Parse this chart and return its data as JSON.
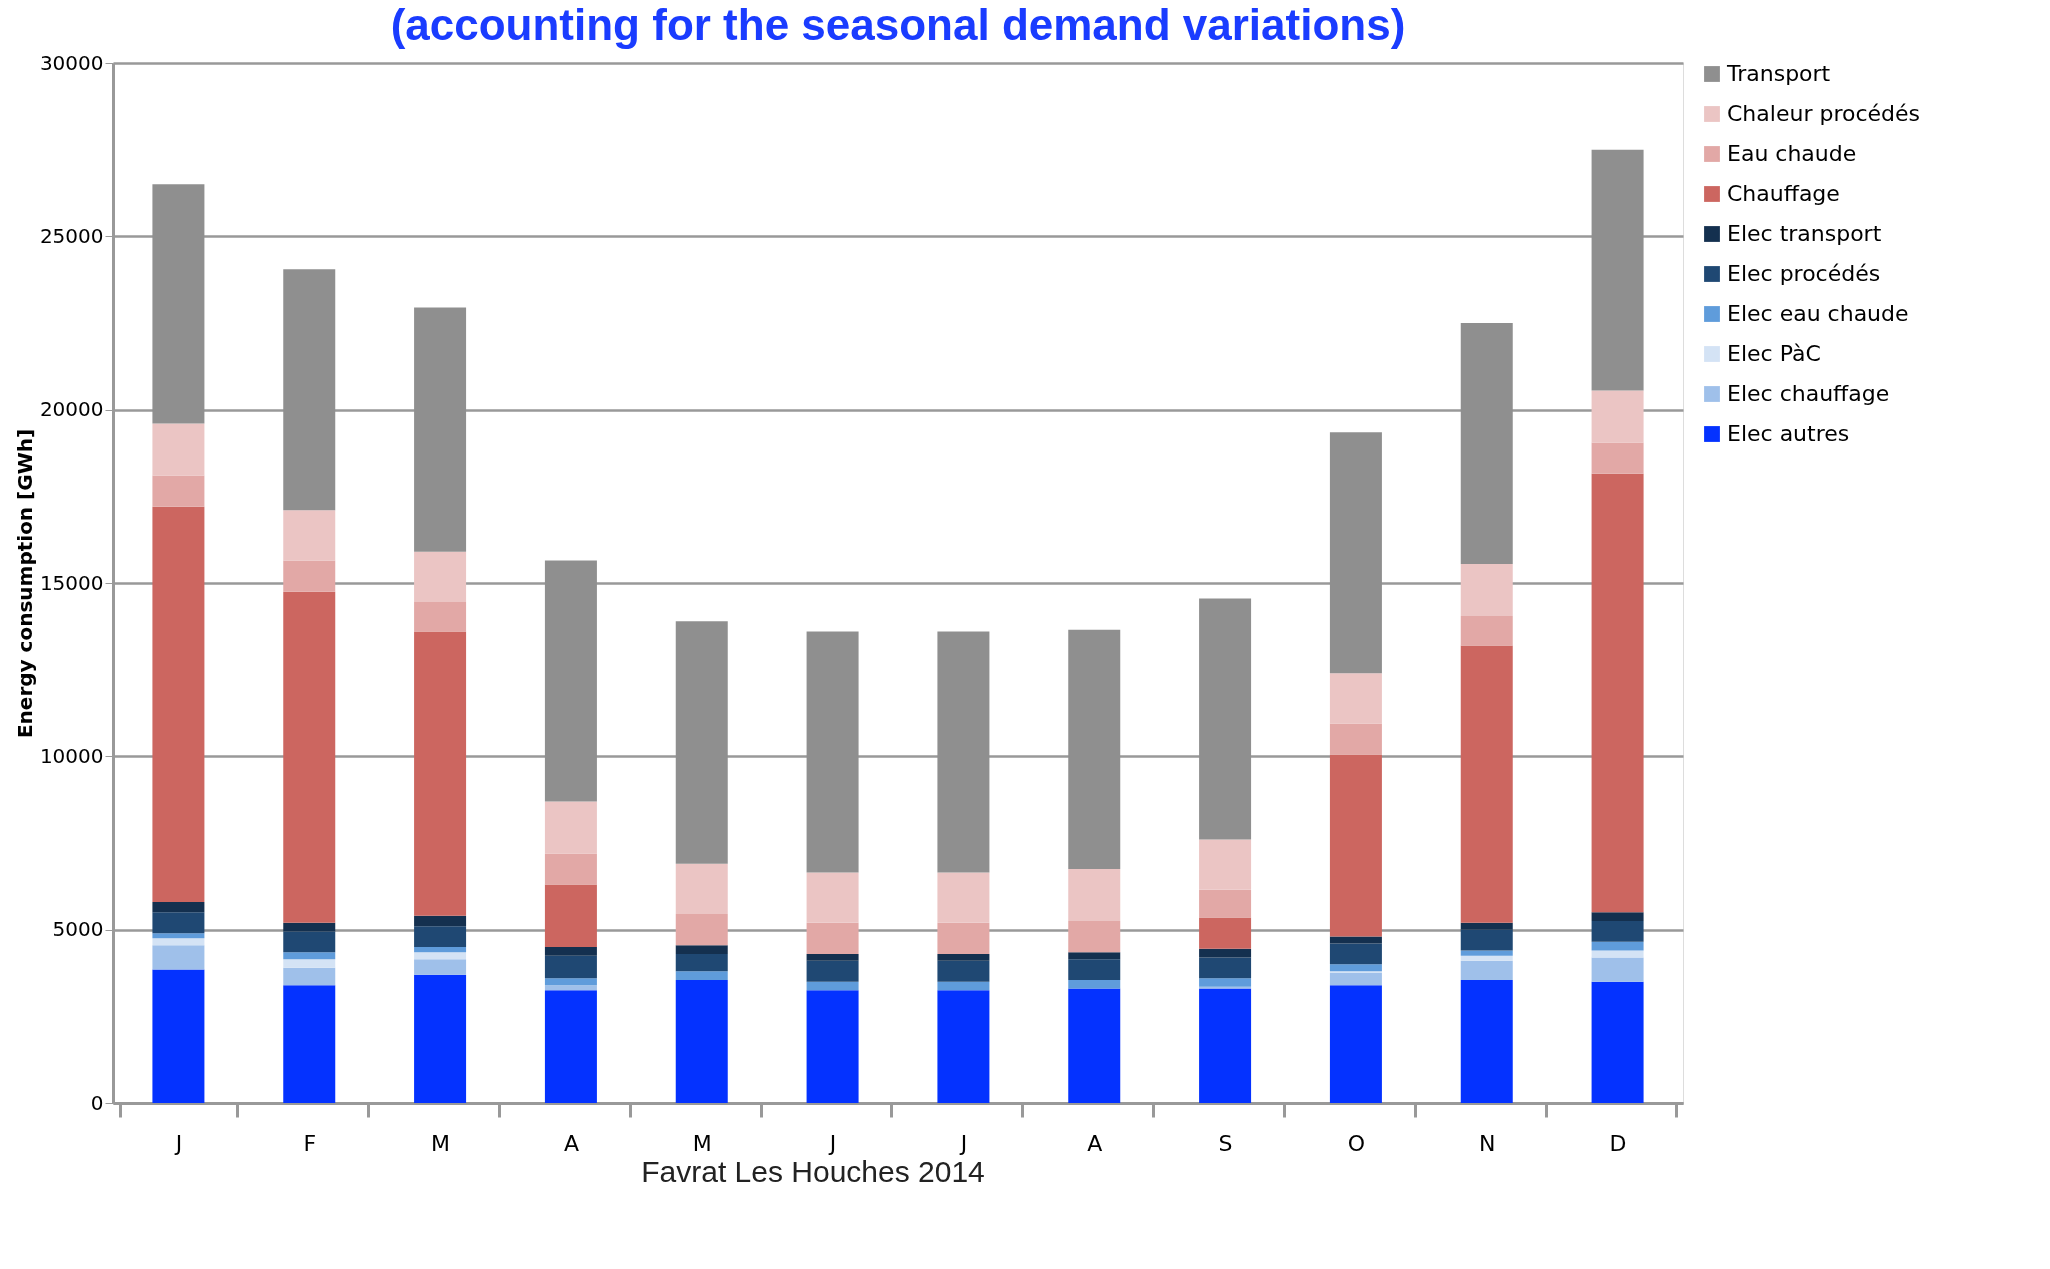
{
  "chart_data": {
    "type": "bar",
    "stacked": true,
    "title": "(accounting for the seasonal demand variations)",
    "ylabel": "Energy consumption [GWh]",
    "categories": [
      "J",
      "F",
      "M",
      "A",
      "M",
      "J",
      "J",
      "A",
      "S",
      "O",
      "N",
      "D"
    ],
    "ylim": [
      0,
      30000
    ],
    "yticks": [
      0,
      5000,
      10000,
      15000,
      20000,
      25000,
      30000
    ],
    "grid": "y",
    "legend": "right",
    "annotations": [
      "Favrat Les Houches 2014"
    ],
    "series": [
      {
        "name": "Elec autres",
        "color": "#0432ff",
        "values": [
          3850,
          3400,
          3700,
          3250,
          3550,
          3250,
          3250,
          3300,
          3300,
          3400,
          3550,
          3500
        ]
      },
      {
        "name": "Elec chauffage",
        "color": "#9fc0ea",
        "values": [
          700,
          500,
          450,
          150,
          0,
          0,
          0,
          0,
          50,
          350,
          550,
          700
        ]
      },
      {
        "name": "Elec PàC",
        "color": "#d4e3f5",
        "values": [
          200,
          250,
          200,
          0,
          0,
          0,
          0,
          0,
          0,
          50,
          150,
          200
        ]
      },
      {
        "name": "Elec eau chaude",
        "color": "#5f9cdb",
        "values": [
          150,
          200,
          150,
          200,
          250,
          250,
          250,
          250,
          250,
          200,
          150,
          250
        ]
      },
      {
        "name": "Elec procédés",
        "color": "#1f4873",
        "values": [
          600,
          600,
          600,
          650,
          500,
          600,
          600,
          600,
          600,
          600,
          600,
          600
        ]
      },
      {
        "name": "Elec transport",
        "color": "#14304f",
        "values": [
          300,
          250,
          300,
          250,
          250,
          200,
          200,
          200,
          250,
          200,
          200,
          250
        ]
      },
      {
        "name": "Chauffage",
        "color": "#cc6660",
        "values": [
          11400,
          9550,
          8200,
          1800,
          0,
          0,
          0,
          0,
          900,
          5250,
          8000,
          12650
        ]
      },
      {
        "name": "Eau chaude",
        "color": "#e2a8a6",
        "values": [
          900,
          900,
          850,
          900,
          900,
          900,
          900,
          900,
          800,
          900,
          850,
          900
        ]
      },
      {
        "name": "Chaleur procédés",
        "color": "#ebc5c4",
        "values": [
          1500,
          1450,
          1450,
          1500,
          1450,
          1450,
          1450,
          1500,
          1450,
          1450,
          1500,
          1500
        ]
      },
      {
        "name": "Transport",
        "color": "#8f8f8f",
        "values": [
          6900,
          6950,
          7050,
          6950,
          7000,
          6950,
          6950,
          6900,
          6950,
          6950,
          6950,
          6950
        ]
      }
    ]
  }
}
